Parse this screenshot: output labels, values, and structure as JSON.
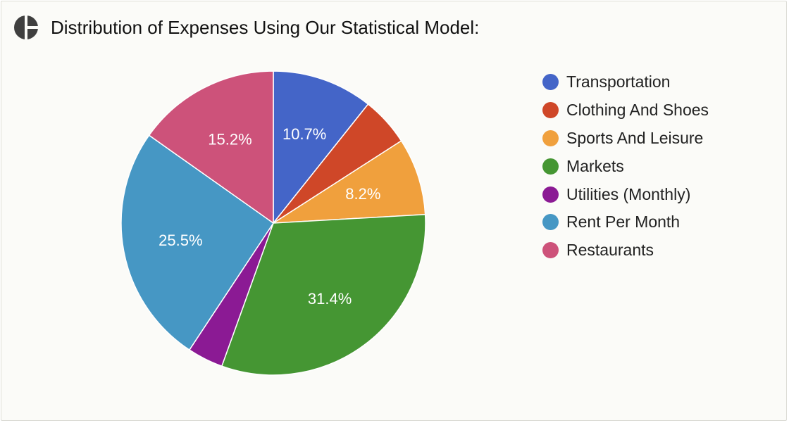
{
  "header": {
    "title": "Distribution of Expenses Using Our Statistical Model:",
    "icon": "pie-chart-icon"
  },
  "chart_data": {
    "type": "pie",
    "title": "Distribution of Expenses Using Our Statistical Model:",
    "legend_position": "right",
    "start_angle_deg": 0,
    "direction": "clockwise",
    "slices": [
      {
        "label": "Transportation",
        "value": 10.7,
        "color": "#4465c8",
        "data_label": "10.7%"
      },
      {
        "label": "Clothing And Shoes",
        "value": 5.2,
        "color": "#cf4728",
        "data_label": ""
      },
      {
        "label": "Sports And Leisure",
        "value": 8.2,
        "color": "#f0a03d",
        "data_label": "8.2%"
      },
      {
        "label": "Markets",
        "value": 31.4,
        "color": "#459633",
        "data_label": "31.4%"
      },
      {
        "label": "Utilities (Monthly)",
        "value": 3.8,
        "color": "#8b1a94",
        "data_label": ""
      },
      {
        "label": "Rent Per Month",
        "value": 25.5,
        "color": "#4697c4",
        "data_label": "25.5%"
      },
      {
        "label": "Restaurants",
        "value": 15.2,
        "color": "#cd527a",
        "data_label": "15.2%"
      }
    ]
  }
}
